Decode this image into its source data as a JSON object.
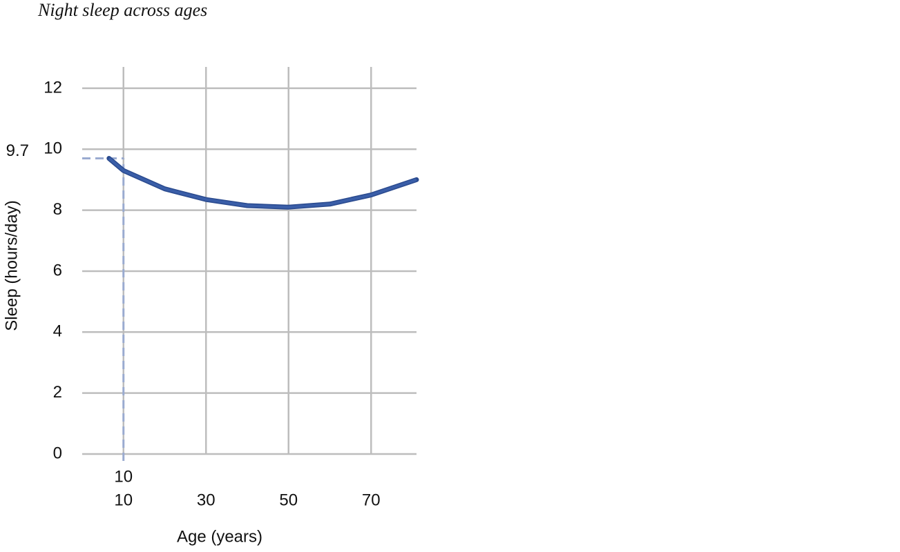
{
  "chart_data": {
    "type": "line",
    "title": "Night sleep across ages",
    "x_label": "Age (years)",
    "y_label": "Sleep (hours/day)",
    "x": [
      6.5,
      10,
      20,
      30,
      40,
      50,
      60,
      70,
      81
    ],
    "series": [
      {
        "name": "Sleep",
        "color": "#3a5ea8",
        "values": [
          9.7,
          9.3,
          8.7,
          8.35,
          8.15,
          8.1,
          8.2,
          8.5,
          9.0
        ]
      }
    ],
    "xlim": [
      0,
      81
    ],
    "xticks": [
      10,
      30,
      50,
      70
    ],
    "ylim": [
      0,
      12.7
    ],
    "yticks": [
      0,
      2,
      4,
      6,
      8,
      10,
      12
    ],
    "grid": true,
    "annotation": {
      "x": 10,
      "y": 9.7,
      "color": "#9aabd0"
    }
  }
}
